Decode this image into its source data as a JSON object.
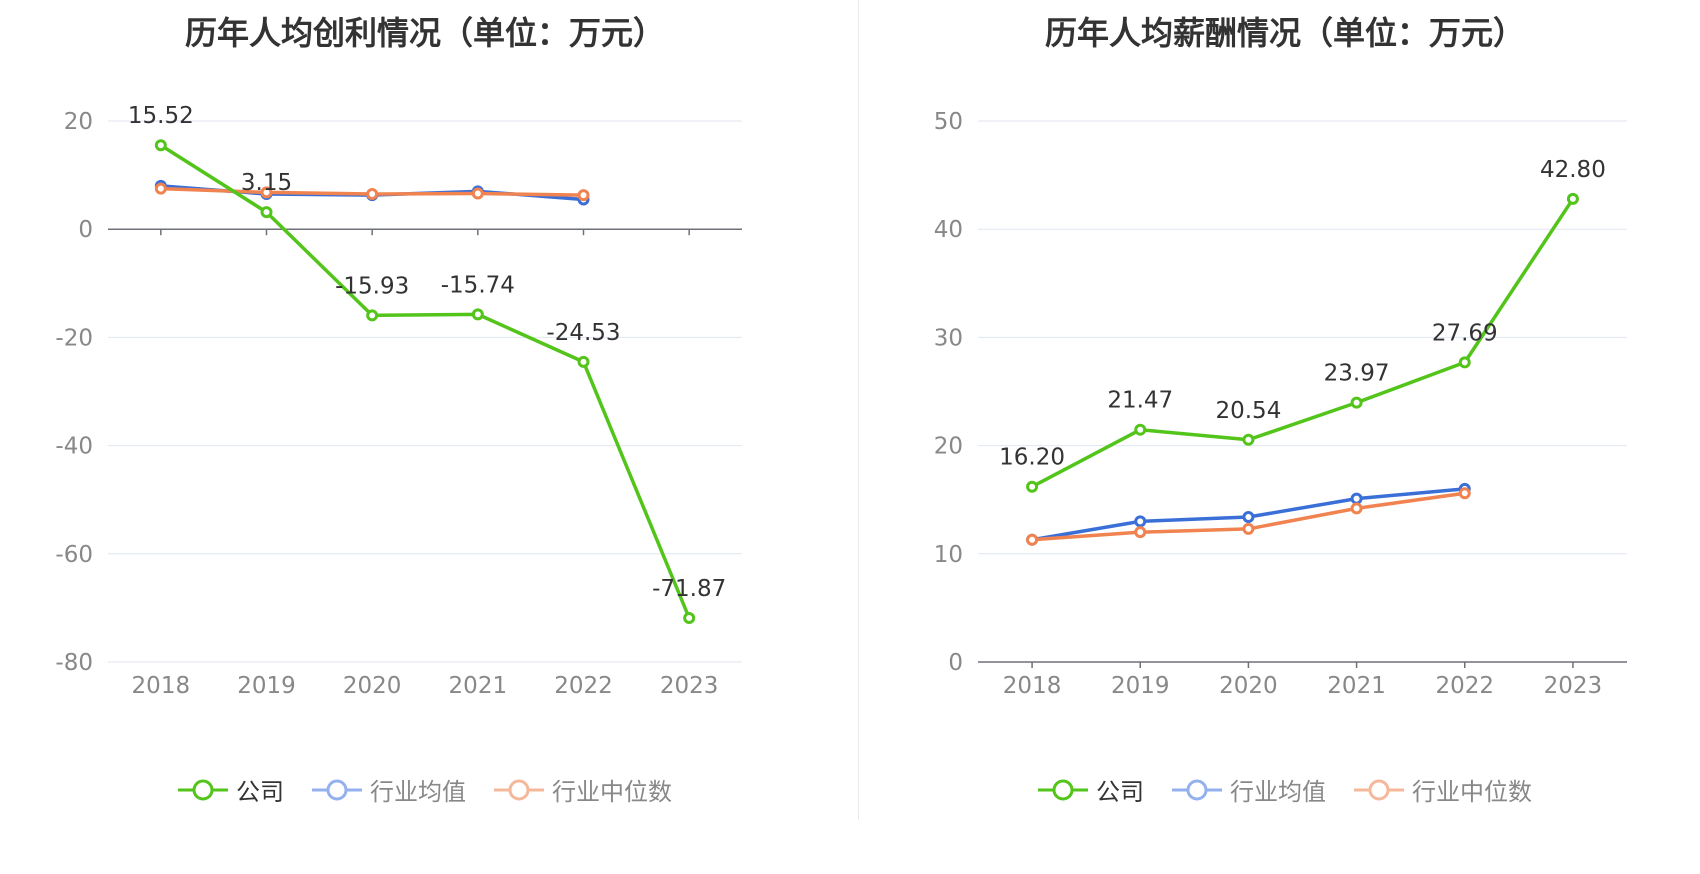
{
  "charts": [
    {
      "title": "历年人均创利情况（单位：万元）",
      "legend": [
        "公司",
        "行业均值",
        "行业中位数"
      ]
    },
    {
      "title": "历年人均薪酬情况（单位：万元）",
      "legend": [
        "公司",
        "行业均值",
        "行业中位数"
      ]
    }
  ],
  "chart_data": [
    {
      "type": "line",
      "title": "历年人均创利情况（单位：万元）",
      "x": [
        "2018",
        "2019",
        "2020",
        "2021",
        "2022",
        "2023"
      ],
      "ylim": [
        -80,
        20
      ],
      "yticks": [
        20,
        0,
        -20,
        -40,
        -60,
        -80
      ],
      "grid": true,
      "legend_position": "bottom",
      "series": [
        {
          "name": "公司",
          "color": "#52c41a",
          "values": [
            15.52,
            3.15,
            -15.93,
            -15.74,
            -24.53,
            -71.87
          ],
          "labels": [
            "15.52",
            "3.15",
            "-15.93",
            "-15.74",
            "-24.53",
            "-71.87"
          ]
        },
        {
          "name": "行业均值",
          "color": "#3b6fd8",
          "values": [
            8.0,
            6.5,
            6.3,
            7.0,
            5.5,
            null
          ]
        },
        {
          "name": "行业中位数",
          "color": "#f08350",
          "values": [
            7.5,
            6.8,
            6.5,
            6.6,
            6.3,
            null
          ]
        }
      ]
    },
    {
      "type": "line",
      "title": "历年人均薪酬情况（单位：万元）",
      "x": [
        "2018",
        "2019",
        "2020",
        "2021",
        "2022",
        "2023"
      ],
      "ylim": [
        0,
        50
      ],
      "yticks": [
        50,
        40,
        30,
        20,
        10,
        0
      ],
      "grid": true,
      "legend_position": "bottom",
      "series": [
        {
          "name": "公司",
          "color": "#52c41a",
          "values": [
            16.2,
            21.47,
            20.54,
            23.97,
            27.69,
            42.8
          ],
          "labels": [
            "16.20",
            "21.47",
            "20.54",
            "23.97",
            "27.69",
            "42.80"
          ]
        },
        {
          "name": "行业均值",
          "color": "#3b6fd8",
          "values": [
            11.3,
            13.0,
            13.4,
            15.1,
            16.0,
            null
          ]
        },
        {
          "name": "行业中位数",
          "color": "#f08350",
          "values": [
            11.3,
            12.0,
            12.3,
            14.2,
            15.6,
            null
          ]
        }
      ]
    }
  ]
}
